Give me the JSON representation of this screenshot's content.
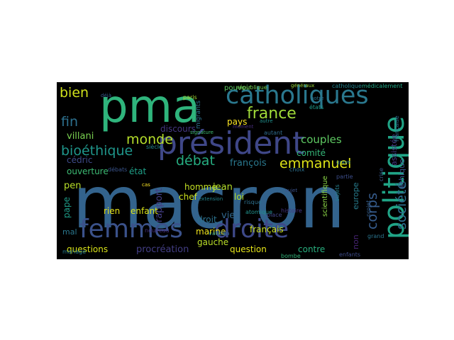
{
  "wordcloud": {
    "words": [
      {
        "text": "macron",
        "color": "#33638d"
      },
      {
        "text": "pma",
        "color": "#2fb47c"
      },
      {
        "text": "président",
        "color": "#3f4788"
      },
      {
        "text": "catholiques",
        "color": "#2a788e"
      },
      {
        "text": "femmes",
        "color": "#3b528b"
      },
      {
        "text": "droite",
        "color": "#3e4989"
      },
      {
        "text": "politique",
        "color": "#20a486"
      },
      {
        "text": "france",
        "color": "#a0da39"
      },
      {
        "text": "bien",
        "color": "#d0e11c"
      },
      {
        "text": "monde",
        "color": "#b5de2b"
      },
      {
        "text": "fin",
        "color": "#2d708e"
      },
      {
        "text": "bioéthique",
        "color": "#1f968b"
      },
      {
        "text": "débat",
        "color": "#26ad81"
      },
      {
        "text": "emmanuel",
        "color": "#dde318"
      },
      {
        "text": "couples",
        "color": "#5ec962"
      },
      {
        "text": "pays",
        "color": "#fde725"
      },
      {
        "text": "société",
        "color": "#2e6e8e"
      },
      {
        "text": "corps",
        "color": "#365c8d"
      },
      {
        "text": "villani",
        "color": "#7ad151"
      },
      {
        "text": "pen",
        "color": "#b8de29"
      },
      {
        "text": "cédric",
        "color": "#3e4a89"
      },
      {
        "text": "discours",
        "color": "#453781"
      },
      {
        "text": "comité",
        "color": "#35b779"
      },
      {
        "text": "françois",
        "color": "#2a788e"
      },
      {
        "text": "ouverture",
        "color": "#3dbc74"
      },
      {
        "text": "état",
        "color": "#1fa088"
      },
      {
        "text": "éthique",
        "color": "#3b528b"
      },
      {
        "text": "europe",
        "color": "#287d8e"
      },
      {
        "text": "assistée",
        "color": "#443983"
      },
      {
        "text": "rapport",
        "color": "#433e85"
      },
      {
        "text": "homme",
        "color": "#c2df23"
      },
      {
        "text": "jean",
        "color": "#b5de2b"
      },
      {
        "text": "chef",
        "color": "#cde11d"
      },
      {
        "text": "loi",
        "color": "#b8de29"
      },
      {
        "text": "pape",
        "color": "#1f9e89"
      },
      {
        "text": "vie",
        "color": "#31688e"
      },
      {
        "text": "rien",
        "color": "#e7e419"
      },
      {
        "text": "enfant",
        "color": "#dae319"
      },
      {
        "text": "droit",
        "color": "#2c728e"
      },
      {
        "text": "marine",
        "color": "#f1e51d"
      },
      {
        "text": "français",
        "color": "#c8e020"
      },
      {
        "text": "mal",
        "color": "#2a778e"
      },
      {
        "text": "gauche",
        "color": "#bade28"
      },
      {
        "text": "questions",
        "color": "#d8e219"
      },
      {
        "text": "procréation",
        "color": "#433e85"
      },
      {
        "text": "question",
        "color": "#e5e419"
      },
      {
        "text": "contre",
        "color": "#29af7f"
      },
      {
        "text": "non",
        "color": "#482475"
      },
      {
        "text": "scientifique",
        "color": "#8bd646"
      },
      {
        "text": "pouvoir",
        "color": "#5ec962"
      },
      {
        "text": "république",
        "color": "#77d153"
      },
      {
        "text": "paris",
        "color": "#aadc32"
      },
      {
        "text": "migrants",
        "color": "#2c728e"
      },
      {
        "text": "généraux",
        "color": "#9dd93b"
      },
      {
        "text": "catholique",
        "color": "#25848e"
      },
      {
        "text": "médicalement",
        "color": "#22a785"
      },
      {
        "text": "siècle",
        "color": "#24878e"
      },
      {
        "text": "débats",
        "color": "#3a548c"
      },
      {
        "text": "choix",
        "color": "#2d718e"
      },
      {
        "text": "sujets",
        "color": "#26818e"
      },
      {
        "text": "projet",
        "color": "#355f8d"
      },
      {
        "text": "enfants",
        "color": "#3e4c8a"
      },
      {
        "text": "crise",
        "color": "#38598c"
      },
      {
        "text": "atomique",
        "color": "#20928c"
      },
      {
        "text": "nouveau",
        "color": "#46307e"
      },
      {
        "text": "mariage",
        "color": "#287c8e"
      },
      {
        "text": "bombe",
        "color": "#32b67a"
      },
      {
        "text": "partie",
        "color": "#3d4e8a"
      },
      {
        "text": "vatican",
        "color": "#23888e"
      },
      {
        "text": "grand",
        "color": "#2b758e"
      },
      {
        "text": "place",
        "color": "#404588"
      },
      {
        "text": "risque",
        "color": "#2d708e"
      },
      {
        "text": "sujet",
        "color": "#3b528b"
      },
      {
        "text": "cas",
        "color": "#fde725"
      },
      {
        "text": "côté",
        "color": "#3b518b"
      },
      {
        "text": "autant",
        "color": "#2f6c8e"
      },
      {
        "text": "histoire",
        "color": "#453581"
      },
      {
        "text": "moment",
        "color": "#472d7b"
      },
      {
        "text": "signature",
        "color": "#3fbc73"
      },
      {
        "text": "déjà",
        "color": "#375b8d"
      },
      {
        "text": "autre",
        "color": "#21908d"
      },
      {
        "text": "notre",
        "color": "#2c738e"
      },
      {
        "text": "états",
        "color": "#1e9b8a"
      },
      {
        "text": "française",
        "color": "#2e6d8e"
      },
      {
        "text": "extension",
        "color": "#24868e"
      },
      {
        "text": "grave",
        "color": "#29798e"
      }
    ]
  }
}
